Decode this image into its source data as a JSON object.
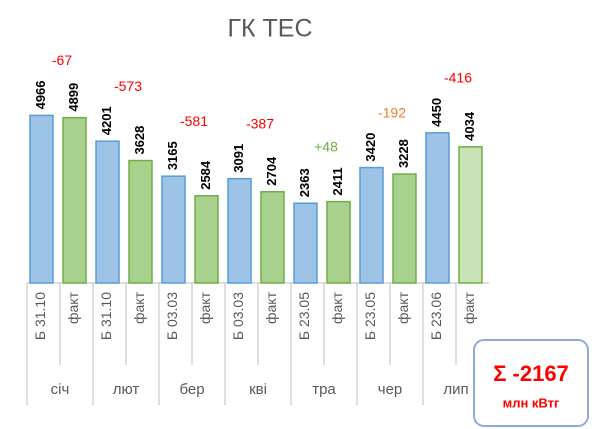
{
  "chart_data": {
    "type": "bar",
    "title": "ГК ТЕС",
    "categories": [
      "січ",
      "лют",
      "бер",
      "кві",
      "тра",
      "чер",
      "лип"
    ],
    "series": [
      {
        "labels": [
          "Б 31.10",
          "Б 31.10",
          "Б 03.03",
          "Б 03.03",
          "Б 23.05",
          "Б 23.05",
          "Б 23.06"
        ],
        "color": "#9dc3e6",
        "values": [
          4966,
          4201,
          3165,
          3091,
          2363,
          3420,
          4450
        ]
      },
      {
        "name": "факт",
        "color": "#a9d18e",
        "colors": [
          "#a9d18e",
          "#a9d18e",
          "#a9d18e",
          "#a9d18e",
          "#a9d18e",
          "#a9d18e",
          "#c9e3b6"
        ],
        "values": [
          4899,
          3628,
          2584,
          2704,
          2411,
          3228,
          4034
        ]
      }
    ],
    "annotations": [
      "-67",
      "-573",
      "-581",
      "-387",
      "+48",
      "-192",
      "-416"
    ],
    "annotation_colors": [
      "#ff0000",
      "#ff0000",
      "#ff0000",
      "#ff0000",
      "#70ad47",
      "#ed7d31",
      "#ff0000"
    ],
    "ylim": [
      0,
      5600
    ],
    "total": {
      "value": "Σ -2167",
      "unit": "млн кВтг"
    }
  }
}
